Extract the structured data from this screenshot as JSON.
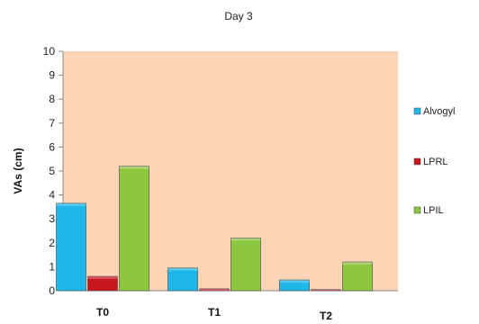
{
  "chart_data": {
    "type": "bar",
    "title": "Day 3",
    "xlabel": "",
    "ylabel": "VAs (cm)",
    "ylim": [
      0,
      10
    ],
    "yticks": [
      0,
      1,
      2,
      3,
      4,
      5,
      6,
      7,
      8,
      9,
      10
    ],
    "categories": [
      "T0",
      "T1",
      "T2"
    ],
    "series": [
      {
        "name": "Alvogyl",
        "values": [
          3.65,
          0.95,
          0.45
        ],
        "color": "#1fb7e8"
      },
      {
        "name": "LPRL",
        "values": [
          0.6,
          0.08,
          0.05
        ],
        "color": "#c8161d"
      },
      {
        "name": "LPIL",
        "values": [
          5.2,
          2.2,
          1.2
        ],
        "color": "#8dc63f"
      }
    ],
    "plot_background": "#fbd5b5",
    "grid": false,
    "legend_position": "right"
  }
}
